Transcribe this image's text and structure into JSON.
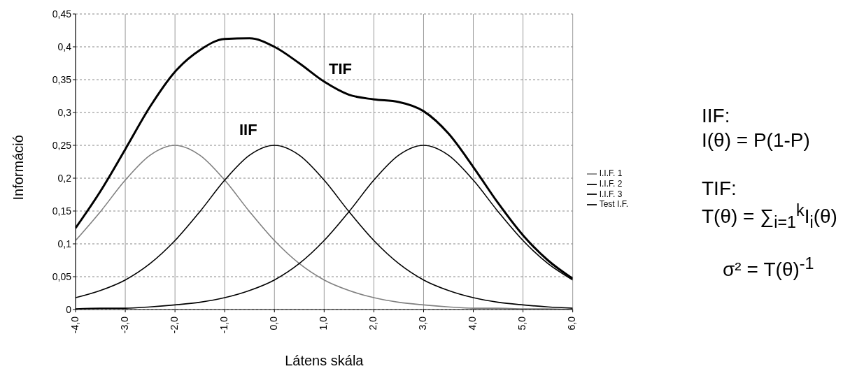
{
  "chart_data": {
    "type": "line",
    "xlabel": "Látens skála",
    "ylabel": "Információ",
    "x": [
      -4,
      -3.5,
      -3,
      -2.5,
      -2,
      -1.5,
      -1,
      -0.5,
      0,
      0.5,
      1,
      1.5,
      2,
      2.5,
      3,
      3.5,
      4,
      4.5,
      5,
      5.5,
      6
    ],
    "series": [
      {
        "name": "I.I.F. 1",
        "color": "#808080",
        "values": [
          0.105,
          0.149,
          0.197,
          0.235,
          0.25,
          0.235,
          0.197,
          0.149,
          0.105,
          0.07,
          0.045,
          0.029,
          0.018,
          0.011,
          0.007,
          0.004,
          0.002,
          0.002,
          0.001,
          0.001,
          0.0
        ]
      },
      {
        "name": "I.I.F. 2",
        "color": "#000000",
        "values": [
          0.018,
          0.029,
          0.045,
          0.07,
          0.105,
          0.149,
          0.197,
          0.235,
          0.25,
          0.235,
          0.197,
          0.149,
          0.105,
          0.07,
          0.045,
          0.029,
          0.018,
          0.011,
          0.007,
          0.004,
          0.002
        ]
      },
      {
        "name": "I.I.F. 3",
        "color": "#000000",
        "values": [
          0.001,
          0.002,
          0.002,
          0.004,
          0.007,
          0.011,
          0.018,
          0.029,
          0.045,
          0.07,
          0.105,
          0.149,
          0.197,
          0.235,
          0.25,
          0.235,
          0.197,
          0.149,
          0.105,
          0.07,
          0.045
        ]
      },
      {
        "name": "Test I.F.",
        "color": "#000000",
        "values": [
          0.124,
          0.18,
          0.244,
          0.309,
          0.362,
          0.395,
          0.412,
          0.413,
          0.4,
          0.375,
          0.347,
          0.327,
          0.32,
          0.316,
          0.302,
          0.268,
          0.217,
          0.162,
          0.113,
          0.075,
          0.047
        ]
      }
    ],
    "xlim": [
      -4,
      6
    ],
    "xticks": [
      {
        "value": -4,
        "label": "-4,0"
      },
      {
        "value": -3,
        "label": "-3,0"
      },
      {
        "value": -2,
        "label": "-2,0"
      },
      {
        "value": -1,
        "label": "-1,0"
      },
      {
        "value": 0,
        "label": "0,0"
      },
      {
        "value": 1,
        "label": "1,0"
      },
      {
        "value": 2,
        "label": "2,0"
      },
      {
        "value": 3,
        "label": "3,0"
      },
      {
        "value": 4,
        "label": "4,0"
      },
      {
        "value": 5,
        "label": "5,0"
      },
      {
        "value": 6,
        "label": "6,0"
      }
    ],
    "ylim": [
      0,
      0.45
    ],
    "yticks": [
      0,
      {
        "value": 0.05,
        "label": "0,05"
      },
      {
        "value": 0.1,
        "label": "0,1"
      },
      {
        "value": 0.15,
        "label": "0,15"
      },
      {
        "value": 0.2,
        "label": "0,2"
      },
      {
        "value": 0.25,
        "label": "0,25"
      },
      {
        "value": 0.3,
        "label": "0,3"
      },
      {
        "value": 0.35,
        "label": "0,35"
      },
      {
        "value": 0.4,
        "label": "0,4"
      },
      {
        "value": 0.45,
        "label": "0,45"
      }
    ],
    "grid": true,
    "legend": "right",
    "marker": "none",
    "line_style": "solid",
    "annotations": [
      "TIF",
      "IIF",
      "IIF:",
      "I(θ) = P(1-P)",
      "TIF:",
      "T(θ) = ∑$_{i=1}$$^{k}$I$_{i}$(θ)",
      "σ² = T(θ)$^{-1}$"
    ]
  }
}
